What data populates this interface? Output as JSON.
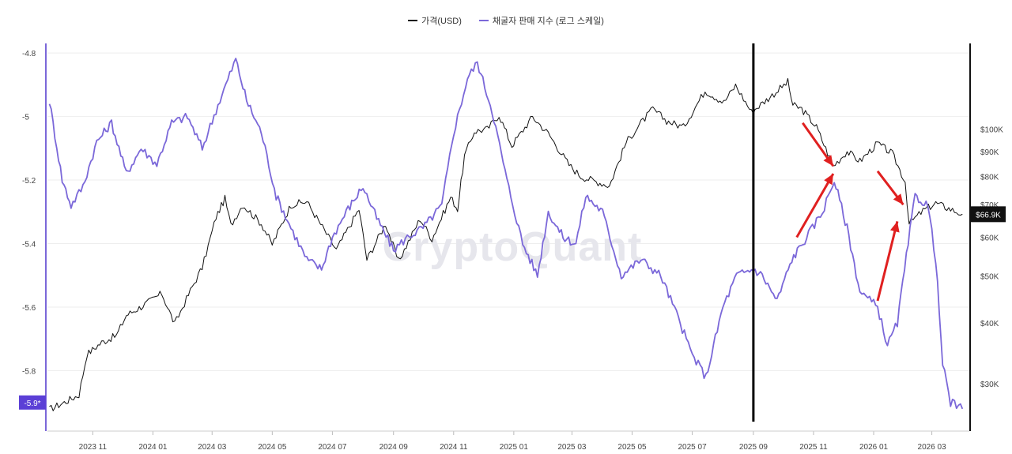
{
  "legend": [
    {
      "label": "가격(USD)",
      "color": "#111111"
    },
    {
      "label": "채굴자 판매 지수 (로그 스케일)",
      "color": "#7b68d9"
    }
  ],
  "watermark": "CryptoQuant",
  "chart_data": {
    "type": "line",
    "x_axis": {
      "type": "time",
      "range": [
        "2023-09-16",
        "2026-04-08"
      ],
      "ticks": [
        {
          "date": "2023-11-01",
          "label": "2023 11"
        },
        {
          "date": "2024-01-01",
          "label": "2024 01"
        },
        {
          "date": "2024-03-01",
          "label": "2024 03"
        },
        {
          "date": "2024-05-01",
          "label": "2024 05"
        },
        {
          "date": "2024-07-01",
          "label": "2024 07"
        },
        {
          "date": "2024-09-01",
          "label": "2024 09"
        },
        {
          "date": "2024-11-01",
          "label": "2024 11"
        },
        {
          "date": "2025-01-01",
          "label": "2025 01"
        },
        {
          "date": "2025-03-01",
          "label": "2025 03"
        },
        {
          "date": "2025-05-01",
          "label": "2025 05"
        },
        {
          "date": "2025-07-01",
          "label": "2025 07"
        },
        {
          "date": "2025-09-01",
          "label": "2025 09"
        },
        {
          "date": "2025-11-01",
          "label": "2025 11"
        },
        {
          "date": "2026-01-01",
          "label": "2026 01"
        },
        {
          "date": "2026-03-01",
          "label": "2026 03"
        }
      ]
    },
    "y_left": {
      "range": [
        -5.99,
        -4.77
      ],
      "ticks": [
        {
          "value": -4.8,
          "label": "-4.8"
        },
        {
          "value": -5.0,
          "label": "-5"
        },
        {
          "value": -5.2,
          "label": "-5.2"
        },
        {
          "value": -5.4,
          "label": "-5.4"
        },
        {
          "value": -5.6,
          "label": "-5.6"
        },
        {
          "value": -5.8,
          "label": "-5.8"
        }
      ],
      "current_label": "-5.9*",
      "current_value": -5.9,
      "axis_color": "#7b68d9"
    },
    "y_right": {
      "scale": "log",
      "range": [
        24000,
        150000
      ],
      "ticks": [
        {
          "value": 100000,
          "label": "$100K"
        },
        {
          "value": 90000,
          "label": "$90K"
        },
        {
          "value": 80000,
          "label": "$80K"
        },
        {
          "value": 70000,
          "label": "$70K"
        },
        {
          "value": 60000,
          "label": "$60K"
        },
        {
          "value": 50000,
          "label": "$50K"
        },
        {
          "value": 40000,
          "label": "$40K"
        },
        {
          "value": 30000,
          "label": "$30K"
        }
      ],
      "current_label": "$66.9K",
      "current_value": 66900,
      "axis_color": "#111111"
    },
    "series": [
      {
        "name": "가격(USD)",
        "axis": "right",
        "color": "#111111",
        "points": [
          [
            "2023-09-18",
            26600
          ],
          [
            "2023-10-05",
            27600
          ],
          [
            "2023-10-18",
            28500
          ],
          [
            "2023-10-26",
            34500
          ],
          [
            "2023-11-10",
            36500
          ],
          [
            "2023-11-25",
            37700
          ],
          [
            "2023-12-05",
            41500
          ],
          [
            "2023-12-20",
            43200
          ],
          [
            "2024-01-10",
            46000
          ],
          [
            "2024-01-23",
            39800
          ],
          [
            "2024-02-10",
            47500
          ],
          [
            "2024-02-20",
            52000
          ],
          [
            "2024-03-05",
            66000
          ],
          [
            "2024-03-14",
            72000
          ],
          [
            "2024-03-20",
            63500
          ],
          [
            "2024-04-01",
            70000
          ],
          [
            "2024-04-20",
            64000
          ],
          [
            "2024-05-01",
            58000
          ],
          [
            "2024-05-20",
            70000
          ],
          [
            "2024-06-05",
            71000
          ],
          [
            "2024-06-25",
            61000
          ],
          [
            "2024-07-05",
            56500
          ],
          [
            "2024-07-28",
            68500
          ],
          [
            "2024-08-05",
            54000
          ],
          [
            "2024-08-24",
            64000
          ],
          [
            "2024-09-06",
            53500
          ],
          [
            "2024-09-28",
            65500
          ],
          [
            "2024-10-10",
            59500
          ],
          [
            "2024-10-29",
            72500
          ],
          [
            "2024-11-05",
            68500
          ],
          [
            "2024-11-12",
            88000
          ],
          [
            "2024-11-22",
            99000
          ],
          [
            "2024-12-05",
            100000
          ],
          [
            "2024-12-17",
            107000
          ],
          [
            "2024-12-30",
            92500
          ],
          [
            "2025-01-20",
            106000
          ],
          [
            "2025-02-05",
            98000
          ],
          [
            "2025-02-26",
            84500
          ],
          [
            "2025-03-10",
            80000
          ],
          [
            "2025-04-08",
            76500
          ],
          [
            "2025-04-25",
            94000
          ],
          [
            "2025-05-10",
            103000
          ],
          [
            "2025-05-22",
            110000
          ],
          [
            "2025-06-05",
            104000
          ],
          [
            "2025-06-22",
            101000
          ],
          [
            "2025-07-14",
            120000
          ],
          [
            "2025-08-02",
            113500
          ],
          [
            "2025-08-14",
            123000
          ],
          [
            "2025-08-30",
            108500
          ],
          [
            "2025-09-18",
            116500
          ],
          [
            "2025-10-06",
            125000
          ],
          [
            "2025-10-11",
            112000
          ],
          [
            "2025-10-20",
            110000
          ],
          [
            "2025-11-04",
            101000
          ],
          [
            "2025-11-21",
            84000
          ],
          [
            "2025-12-05",
            90000
          ],
          [
            "2025-12-18",
            86000
          ],
          [
            "2026-01-05",
            93500
          ],
          [
            "2026-01-20",
            89000
          ],
          [
            "2026-02-02",
            78000
          ],
          [
            "2026-02-06",
            64000
          ],
          [
            "2026-02-20",
            68000
          ],
          [
            "2026-03-05",
            70500
          ],
          [
            "2026-03-20",
            68500
          ],
          [
            "2026-04-01",
            66900
          ]
        ]
      },
      {
        "name": "채굴자 판매 지수 (로그 스케일)",
        "axis": "left",
        "color": "#7b68d9",
        "points": [
          [
            "2023-09-18",
            -4.95
          ],
          [
            "2023-10-01",
            -5.2
          ],
          [
            "2023-10-10",
            -5.28
          ],
          [
            "2023-10-22",
            -5.22
          ],
          [
            "2023-11-05",
            -5.08
          ],
          [
            "2023-11-20",
            -5.02
          ],
          [
            "2023-12-05",
            -5.18
          ],
          [
            "2023-12-20",
            -5.1
          ],
          [
            "2024-01-05",
            -5.15
          ],
          [
            "2024-01-20",
            -5.02
          ],
          [
            "2024-02-05",
            -5.0
          ],
          [
            "2024-02-20",
            -5.1
          ],
          [
            "2024-03-05",
            -4.98
          ],
          [
            "2024-03-15",
            -4.9
          ],
          [
            "2024-03-25",
            -4.82
          ],
          [
            "2024-04-05",
            -4.95
          ],
          [
            "2024-04-20",
            -5.05
          ],
          [
            "2024-05-05",
            -5.25
          ],
          [
            "2024-05-20",
            -5.35
          ],
          [
            "2024-06-05",
            -5.45
          ],
          [
            "2024-06-20",
            -5.48
          ],
          [
            "2024-07-01",
            -5.38
          ],
          [
            "2024-07-15",
            -5.3
          ],
          [
            "2024-08-01",
            -5.22
          ],
          [
            "2024-08-15",
            -5.32
          ],
          [
            "2024-09-01",
            -5.42
          ],
          [
            "2024-09-15",
            -5.38
          ],
          [
            "2024-10-01",
            -5.35
          ],
          [
            "2024-10-20",
            -5.28
          ],
          [
            "2024-11-01",
            -5.05
          ],
          [
            "2024-11-15",
            -4.88
          ],
          [
            "2024-11-25",
            -4.83
          ],
          [
            "2024-12-10",
            -4.98
          ],
          [
            "2024-12-25",
            -5.2
          ],
          [
            "2025-01-10",
            -5.4
          ],
          [
            "2025-01-25",
            -5.5
          ],
          [
            "2025-02-05",
            -5.3
          ],
          [
            "2025-02-20",
            -5.38
          ],
          [
            "2025-03-05",
            -5.4
          ],
          [
            "2025-03-15",
            -5.25
          ],
          [
            "2025-04-01",
            -5.3
          ],
          [
            "2025-04-20",
            -5.5
          ],
          [
            "2025-05-10",
            -5.45
          ],
          [
            "2025-05-30",
            -5.5
          ],
          [
            "2025-06-15",
            -5.62
          ],
          [
            "2025-07-01",
            -5.75
          ],
          [
            "2025-07-15",
            -5.82
          ],
          [
            "2025-08-01",
            -5.6
          ],
          [
            "2025-08-15",
            -5.5
          ],
          [
            "2025-09-01",
            -5.48
          ],
          [
            "2025-09-10",
            -5.5
          ],
          [
            "2025-09-25",
            -5.58
          ],
          [
            "2025-10-10",
            -5.45
          ],
          [
            "2025-10-25",
            -5.38
          ],
          [
            "2025-11-10",
            -5.3
          ],
          [
            "2025-11-22",
            -5.2
          ],
          [
            "2025-12-05",
            -5.35
          ],
          [
            "2025-12-18",
            -5.55
          ],
          [
            "2026-01-05",
            -5.6
          ],
          [
            "2026-01-15",
            -5.72
          ],
          [
            "2026-01-25",
            -5.65
          ],
          [
            "2026-02-05",
            -5.4
          ],
          [
            "2026-02-12",
            -5.25
          ],
          [
            "2026-02-25",
            -5.28
          ],
          [
            "2026-03-05",
            -5.45
          ],
          [
            "2026-03-12",
            -5.78
          ],
          [
            "2026-03-20",
            -5.9
          ],
          [
            "2026-04-01",
            -5.92
          ]
        ]
      }
    ],
    "annotations": {
      "vertical_line": {
        "date": "2025-09-01",
        "color": "#000000"
      },
      "arrows": [
        {
          "from": [
            "2025-10-21",
            103000
          ],
          "to": [
            "2025-11-21",
            84000
          ],
          "direction": "down",
          "color": "#e02020"
        },
        {
          "from": [
            "2025-10-15",
            -5.38
          ],
          "to": [
            "2025-11-21",
            -5.18
          ],
          "direction": "up",
          "color": "#e02020"
        },
        {
          "from": [
            "2026-01-05",
            82000
          ],
          "to": [
            "2026-01-31",
            70000
          ],
          "direction": "down",
          "color": "#e02020"
        },
        {
          "from": [
            "2026-01-05",
            -5.58
          ],
          "to": [
            "2026-01-25",
            -5.33
          ],
          "direction": "up",
          "color": "#e02020"
        }
      ]
    },
    "grid": true,
    "legend_position": "top-center"
  }
}
